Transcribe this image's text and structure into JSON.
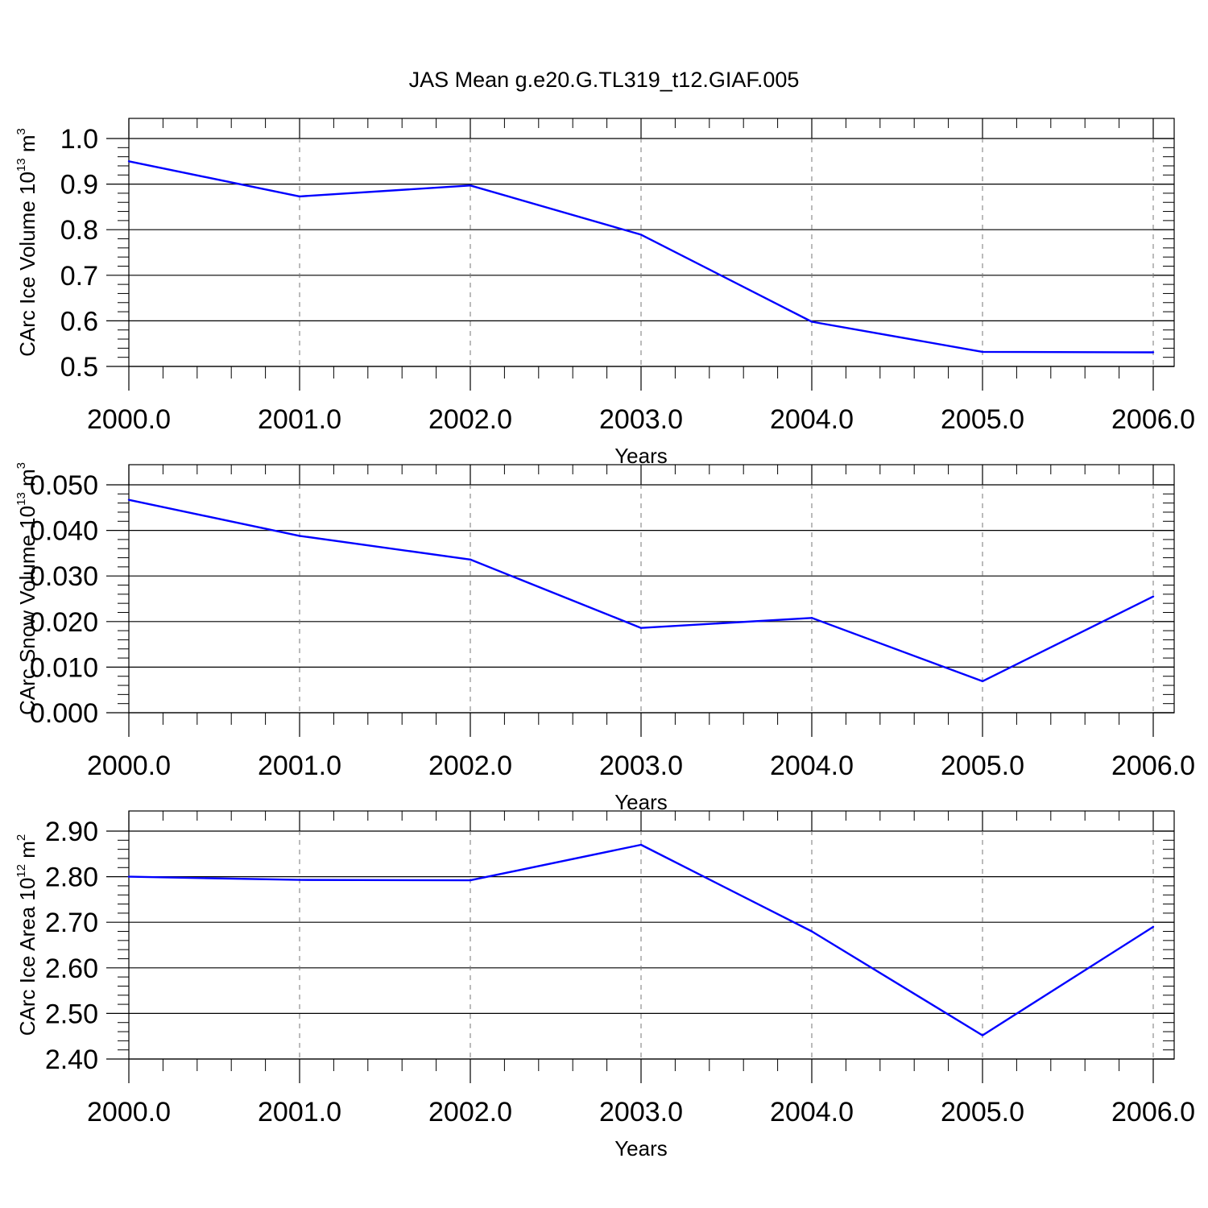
{
  "title": "JAS Mean g.e20.G.TL319_t12.GIAF.005",
  "chart_data": [
    {
      "type": "line",
      "xlabel": "Years",
      "ylabel": {
        "text": "CArc Ice Volume 10",
        "exp": "13",
        "unit": " m",
        "unit_exp": "3"
      },
      "xlim": [
        2000,
        2006
      ],
      "ylim": [
        0.5,
        1.0
      ],
      "x_ticks": [
        "2000.0",
        "2001.0",
        "2002.0",
        "2003.0",
        "2004.0",
        "2005.0",
        "2006.0"
      ],
      "y_ticks": [
        "0.5",
        "0.6",
        "0.7",
        "0.8",
        "0.9",
        "1.0"
      ],
      "x": [
        2000,
        2001,
        2002,
        2003,
        2004,
        2005,
        2006
      ],
      "y": [
        0.95,
        0.873,
        0.897,
        0.789,
        0.598,
        0.532,
        0.531
      ],
      "line_color": "#0000ff"
    },
    {
      "type": "line",
      "xlabel": "Years",
      "ylabel": {
        "text": "CArc Snow Volume 10",
        "exp": "13",
        "unit": " m",
        "unit_exp": "3"
      },
      "xlim": [
        2000,
        2006
      ],
      "ylim": [
        0.0,
        0.05
      ],
      "x_ticks": [
        "2000.0",
        "2001.0",
        "2002.0",
        "2003.0",
        "2004.0",
        "2005.0",
        "2006.0"
      ],
      "y_ticks": [
        "0.000",
        "0.010",
        "0.020",
        "0.030",
        "0.040",
        "0.050"
      ],
      "x": [
        2000,
        2001,
        2002,
        2003,
        2004,
        2005,
        2006
      ],
      "y": [
        0.0467,
        0.0388,
        0.0336,
        0.0186,
        0.0208,
        0.0069,
        0.0255
      ],
      "line_color": "#0000ff"
    },
    {
      "type": "line",
      "xlabel": "Years",
      "ylabel": {
        "text": "CArc Ice Area 10",
        "exp": "12",
        "unit": " m",
        "unit_exp": "2"
      },
      "xlim": [
        2000,
        2006
      ],
      "ylim": [
        2.4,
        2.9
      ],
      "x_ticks": [
        "2000.0",
        "2001.0",
        "2002.0",
        "2003.0",
        "2004.0",
        "2005.0",
        "2006.0"
      ],
      "y_ticks": [
        "2.40",
        "2.50",
        "2.60",
        "2.70",
        "2.80",
        "2.90"
      ],
      "x": [
        2000,
        2001,
        2002,
        2003,
        2004,
        2005,
        2006
      ],
      "y": [
        2.8,
        2.793,
        2.792,
        2.87,
        2.68,
        2.452,
        2.69
      ],
      "line_color": "#0000ff"
    }
  ]
}
